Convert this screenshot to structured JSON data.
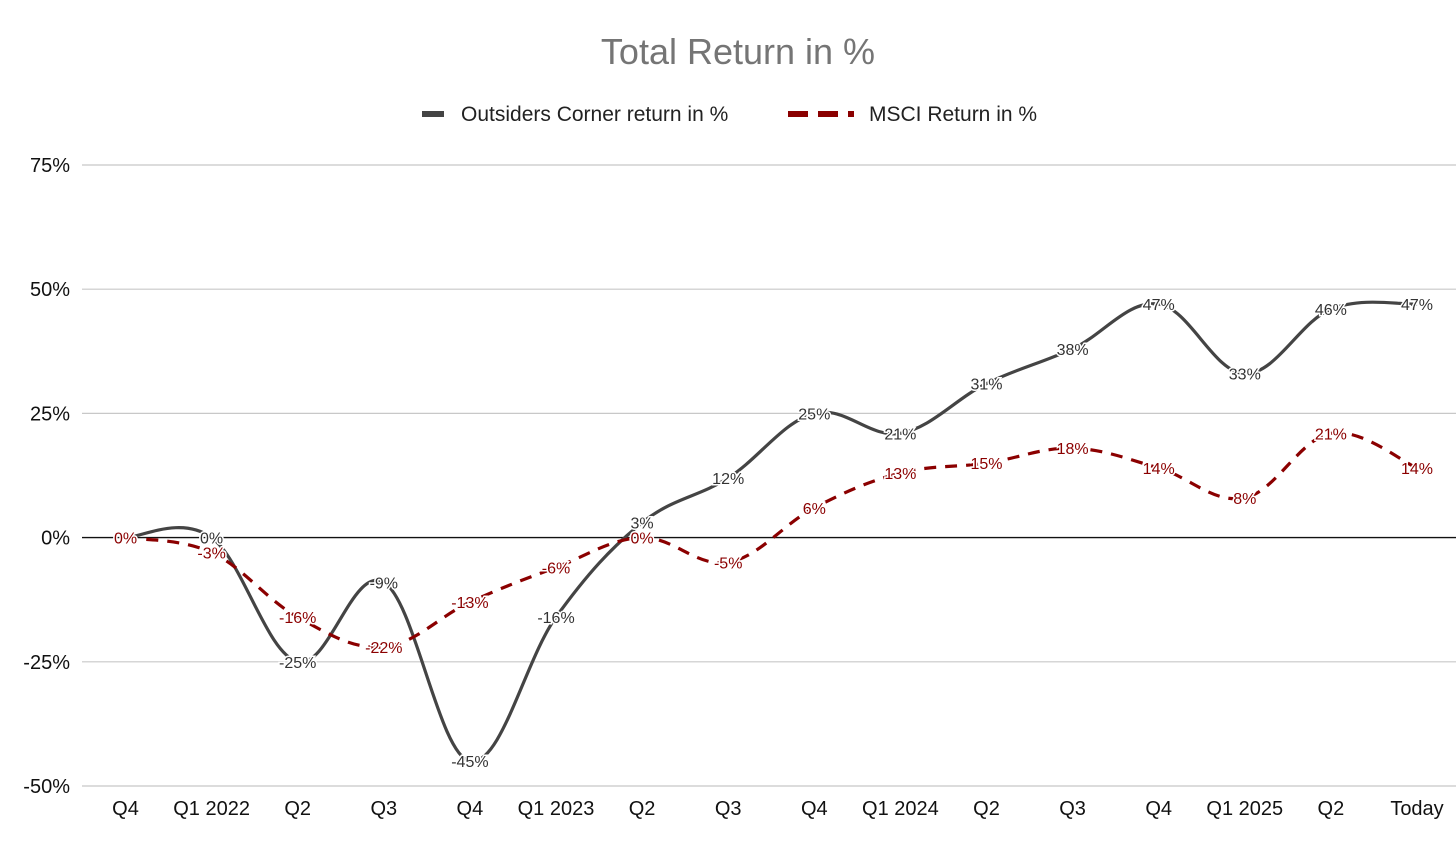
{
  "chart_data": {
    "type": "line",
    "title": "Total Return in %",
    "xlabel": "",
    "ylabel": "",
    "categories": [
      "Q4",
      "Q1 2022",
      "Q2",
      "Q3",
      "Q4",
      "Q1 2023",
      "Q2",
      "Q3",
      "Q4",
      "Q1 2024",
      "Q2",
      "Q3",
      "Q4",
      "Q1 2025",
      "Q2",
      "Today"
    ],
    "series": [
      {
        "name": "Outsiders Corner return in %",
        "values": [
          0,
          0,
          -25,
          -9,
          -45,
          -16,
          3,
          12,
          25,
          21,
          31,
          38,
          47,
          33,
          46,
          47
        ],
        "labels": [
          "",
          "0%",
          "-25%",
          "-9%",
          "-45%",
          "-16%",
          "3%",
          "12%",
          "25%",
          "21%",
          "31%",
          "38%",
          "47%",
          "33%",
          "46%",
          "47%"
        ],
        "color": "#444444",
        "style": "solid"
      },
      {
        "name": "MSCI Return in %",
        "values": [
          0,
          -3,
          -16,
          -22,
          -13,
          -6,
          0,
          -5,
          6,
          13,
          15,
          18,
          14,
          8,
          21,
          14
        ],
        "labels": [
          "0%",
          "-3%",
          "-16%",
          "-22%",
          "-13%",
          "-6%",
          "0%",
          "-5%",
          "6%",
          "13%",
          "15%",
          "18%",
          "14%",
          "8%",
          "21%",
          "14%"
        ],
        "color": "#8b0000",
        "style": "dashed"
      }
    ],
    "y_ticks": [
      {
        "value": 75,
        "label": "75%"
      },
      {
        "value": 50,
        "label": "50%"
      },
      {
        "value": 25,
        "label": "25%"
      },
      {
        "value": 0,
        "label": "0%"
      },
      {
        "value": -25,
        "label": "-25%"
      },
      {
        "value": -50,
        "label": "-50%"
      }
    ],
    "ylim": [
      -50,
      75
    ],
    "grid": true,
    "legend": "top-center",
    "smooth": true
  }
}
